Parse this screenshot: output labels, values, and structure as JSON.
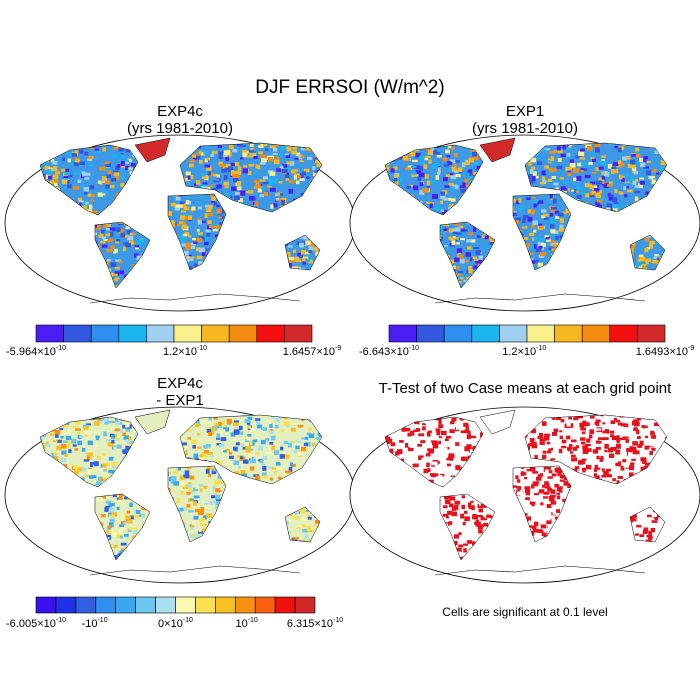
{
  "title": "DJF ERRSOI (W/m^2)",
  "panels": [
    {
      "title": "EXP4c",
      "subtitle": "(yrs 1981-2010)",
      "colorbar": {
        "colors": [
          "#4b1ef5",
          "#3358e0",
          "#2d8ff0",
          "#1ab4f0",
          "#a0d0f0",
          "#f8f08a",
          "#f5b820",
          "#f58a10",
          "#f51010",
          "#d22a2a"
        ],
        "labels": [
          {
            "base": "-5.964×10",
            "exp": "-10"
          },
          {
            "base": "1.2×10",
            "exp": "-10"
          },
          {
            "base": "1.6457×10",
            "exp": "-9"
          }
        ]
      }
    },
    {
      "title": "EXP1",
      "subtitle": "(yrs 1981-2010)",
      "colorbar": {
        "colors": [
          "#4b1ef5",
          "#3358e0",
          "#2d8ff0",
          "#1ab4f0",
          "#a0d0f0",
          "#f8f08a",
          "#f5b820",
          "#f58a10",
          "#f51010",
          "#d22a2a"
        ],
        "labels": [
          {
            "base": "-6.643×10",
            "exp": "-10"
          },
          {
            "base": "1.2×10",
            "exp": "-10"
          },
          {
            "base": "1.6493×10",
            "exp": "-9"
          }
        ]
      }
    },
    {
      "title": "EXP4c",
      "subtitle": "- EXP1",
      "colorbar": {
        "colors": [
          "#3b10f0",
          "#2030e8",
          "#3060e0",
          "#2f8ff0",
          "#3aa8f0",
          "#6ac8f0",
          "#a8e0f0",
          "#f8f8b0",
          "#f8e050",
          "#f8c020",
          "#f89010",
          "#f86010",
          "#f01010",
          "#d02828"
        ],
        "labels": [
          {
            "base": "-6.005×10",
            "exp": "-10"
          },
          {
            "base": "-10",
            "exp": "-10"
          },
          {
            "base": "0×10",
            "exp": "-10"
          },
          {
            "base": "10",
            "exp": "-10"
          },
          {
            "base": "6.315×10",
            "exp": "-10"
          }
        ]
      }
    },
    {
      "title": "T-Test of two Case means at each grid point",
      "note": "Cells are significant at 0.1 level"
    }
  ]
}
